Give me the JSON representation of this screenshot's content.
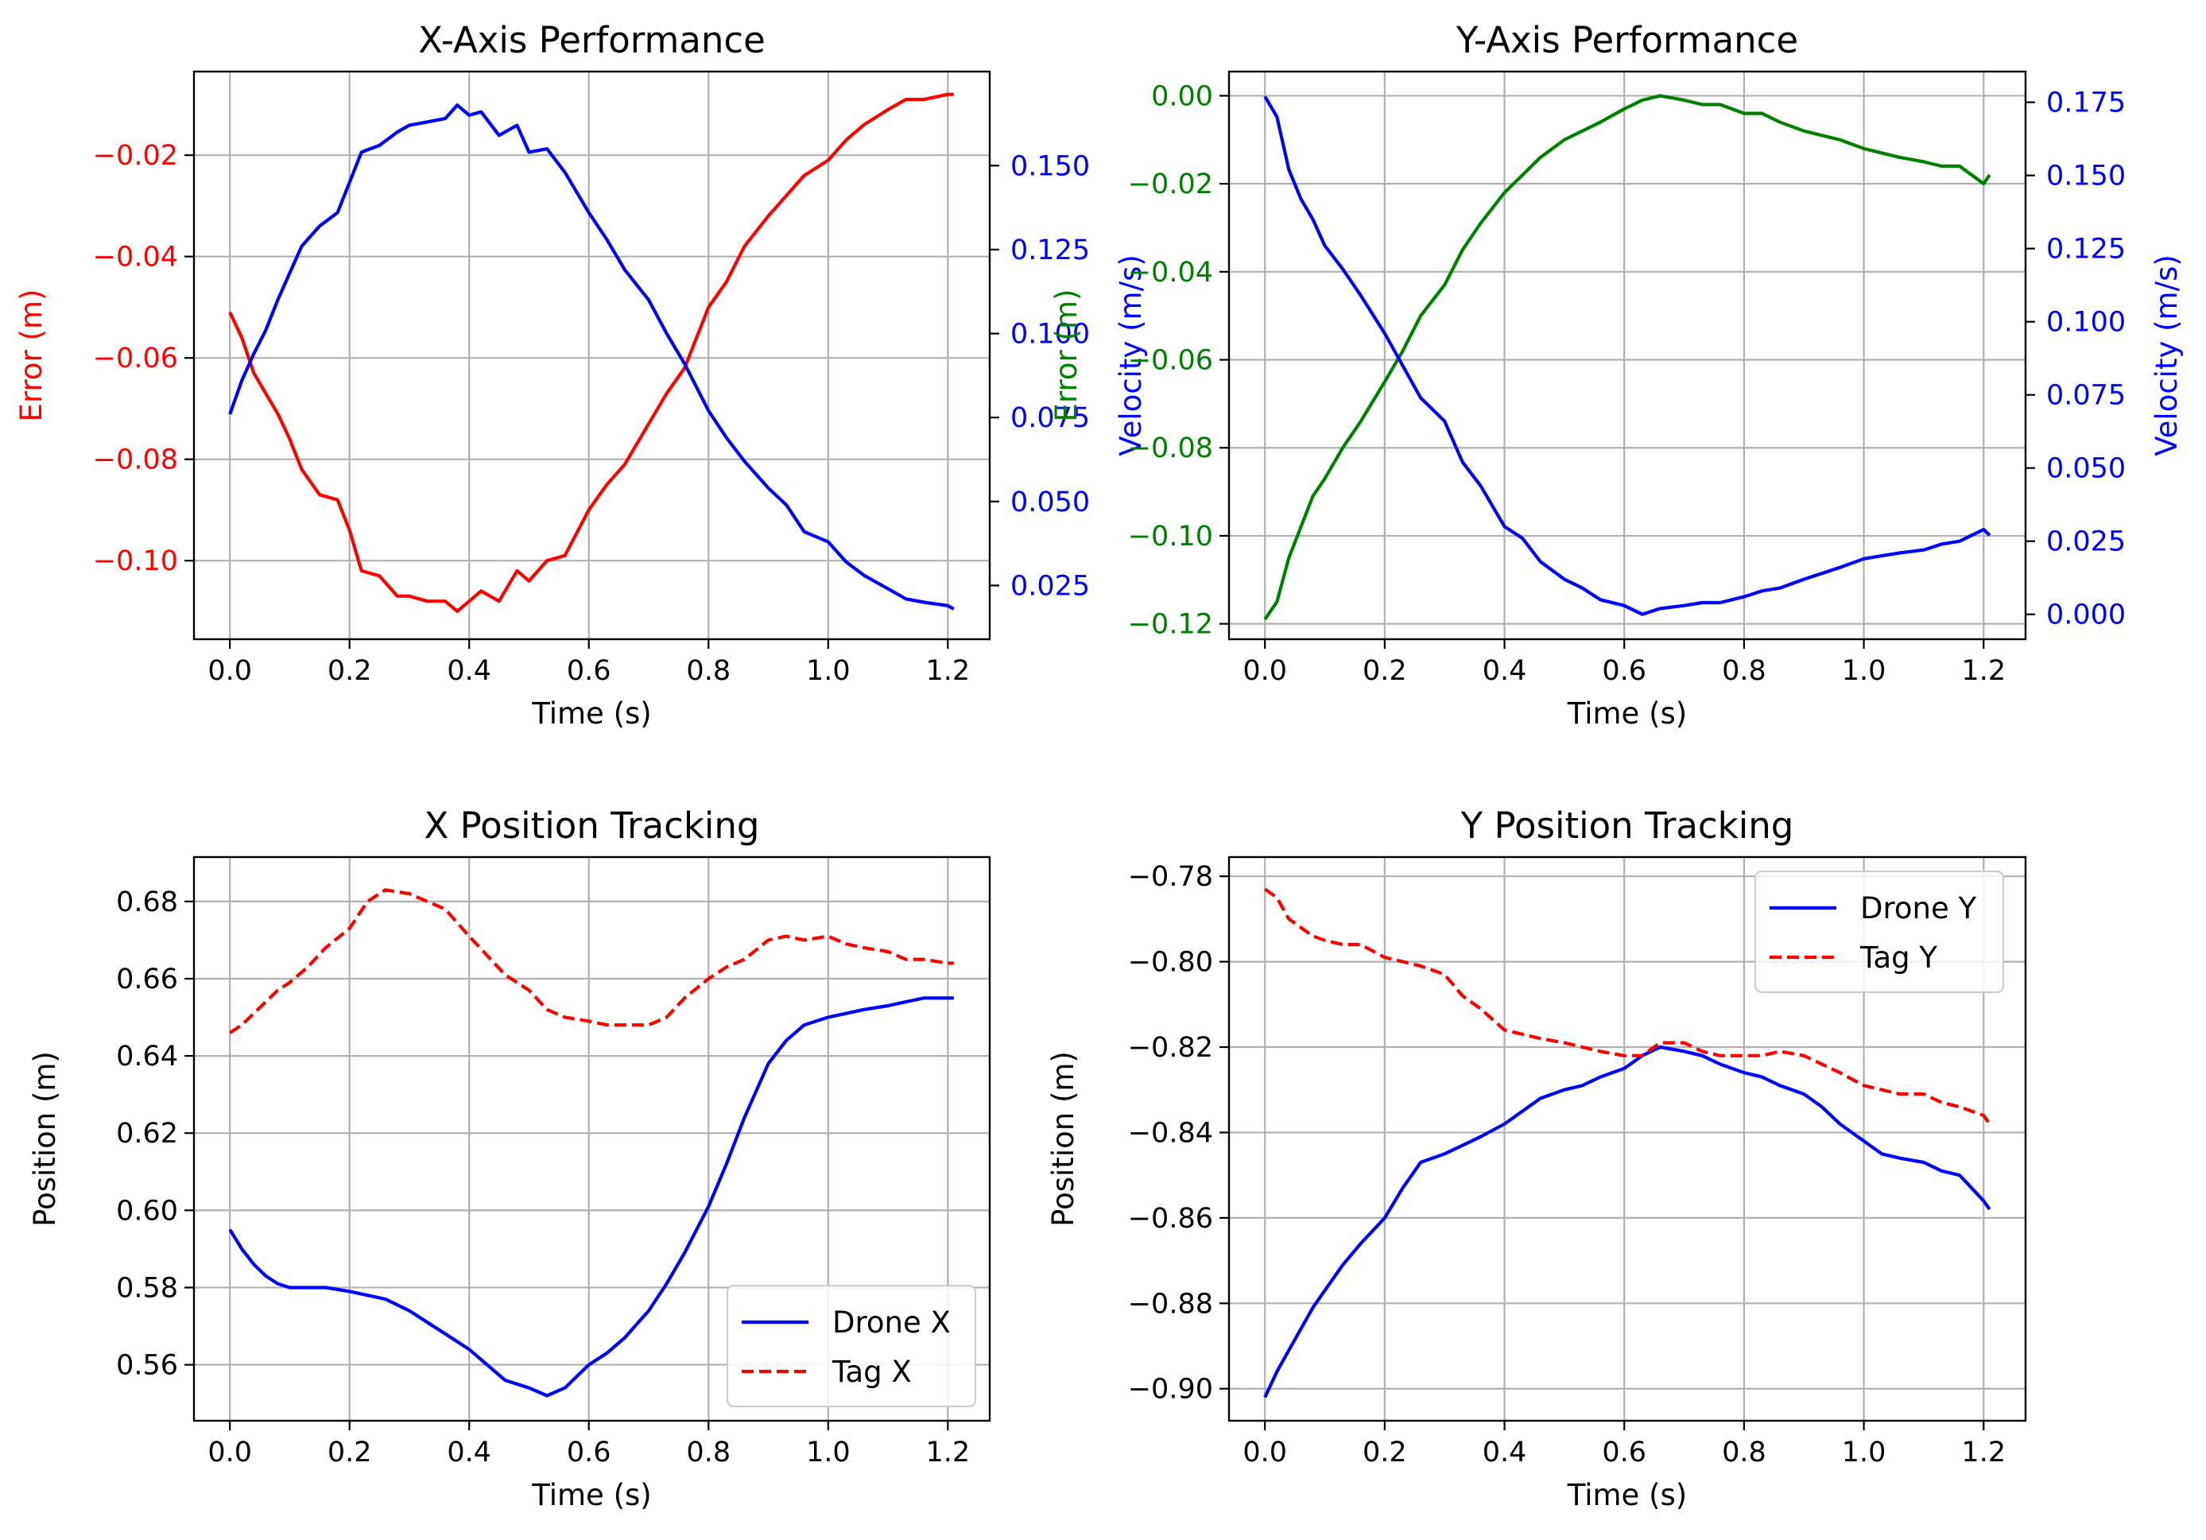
{
  "chart_data": [
    {
      "type": "line",
      "title": "X-Axis Performance",
      "xlabel": "Time (s)",
      "ylabel": "Error (m)",
      "ylabel_color": "#ff0000",
      "y2label": "Velocity (m/s)",
      "y2label_color": "#0000ff",
      "xlim": [
        -0.06,
        1.27
      ],
      "ylim": [
        -0.1155,
        -0.0035
      ],
      "y2lim": [
        0.009,
        0.178
      ],
      "xticks": [
        0.0,
        0.2,
        0.4,
        0.6,
        0.8,
        1.0,
        1.2
      ],
      "xtick_labels": [
        "0.0",
        "0.2",
        "0.4",
        "0.6",
        "0.8",
        "1.0",
        "1.2"
      ],
      "yticks": [
        -0.1,
        -0.08,
        -0.06,
        -0.04,
        -0.02
      ],
      "ytick_labels": [
        "−0.10",
        "−0.08",
        "−0.06",
        "−0.04",
        "−0.02"
      ],
      "ytick_color": "#ff0000",
      "y2ticks": [
        0.025,
        0.05,
        0.075,
        0.1,
        0.125,
        0.15
      ],
      "y2tick_labels": [
        "0.025",
        "0.050",
        "0.075",
        "0.100",
        "0.125",
        "0.150"
      ],
      "y2tick_color": "#0000ff",
      "grid": true,
      "legend": null,
      "series": [
        {
          "axis": "left",
          "color": "#ff0000",
          "style": "solid",
          "x": [
            0.0,
            0.02,
            0.04,
            0.06,
            0.08,
            0.1,
            0.12,
            0.15,
            0.18,
            0.2,
            0.22,
            0.25,
            0.28,
            0.3,
            0.33,
            0.36,
            0.38,
            0.4,
            0.42,
            0.45,
            0.48,
            0.5,
            0.53,
            0.56,
            0.6,
            0.63,
            0.66,
            0.7,
            0.73,
            0.76,
            0.8,
            0.83,
            0.86,
            0.9,
            0.93,
            0.96,
            1.0,
            1.03,
            1.06,
            1.1,
            1.13,
            1.16,
            1.2,
            1.21
          ],
          "y": [
            -0.051,
            -0.056,
            -0.063,
            -0.067,
            -0.071,
            -0.076,
            -0.082,
            -0.087,
            -0.088,
            -0.094,
            -0.102,
            -0.103,
            -0.107,
            -0.107,
            -0.108,
            -0.108,
            -0.11,
            -0.108,
            -0.106,
            -0.108,
            -0.102,
            -0.104,
            -0.1,
            -0.099,
            -0.09,
            -0.085,
            -0.081,
            -0.073,
            -0.067,
            -0.062,
            -0.05,
            -0.045,
            -0.038,
            -0.032,
            -0.028,
            -0.024,
            -0.021,
            -0.017,
            -0.014,
            -0.011,
            -0.009,
            -0.009,
            -0.008,
            -0.008
          ]
        },
        {
          "axis": "right",
          "color": "#0000ff",
          "style": "solid",
          "x": [
            0.0,
            0.02,
            0.04,
            0.06,
            0.08,
            0.1,
            0.12,
            0.15,
            0.18,
            0.2,
            0.22,
            0.25,
            0.28,
            0.3,
            0.33,
            0.36,
            0.38,
            0.4,
            0.42,
            0.45,
            0.48,
            0.5,
            0.53,
            0.56,
            0.6,
            0.63,
            0.66,
            0.7,
            0.73,
            0.76,
            0.8,
            0.83,
            0.86,
            0.9,
            0.93,
            0.96,
            1.0,
            1.03,
            1.06,
            1.1,
            1.13,
            1.16,
            1.2,
            1.21
          ],
          "y": [
            0.076,
            0.086,
            0.094,
            0.101,
            0.11,
            0.118,
            0.126,
            0.132,
            0.136,
            0.145,
            0.154,
            0.156,
            0.16,
            0.162,
            0.163,
            0.164,
            0.168,
            0.165,
            0.166,
            0.159,
            0.162,
            0.154,
            0.155,
            0.148,
            0.136,
            0.128,
            0.119,
            0.11,
            0.1,
            0.091,
            0.077,
            0.069,
            0.062,
            0.054,
            0.049,
            0.041,
            0.038,
            0.032,
            0.028,
            0.024,
            0.021,
            0.02,
            0.019,
            0.018
          ]
        }
      ]
    },
    {
      "type": "line",
      "title": "Y-Axis Performance",
      "xlabel": "Time (s)",
      "ylabel": "Error (m)",
      "ylabel_color": "#008000",
      "y2label": "Velocity (m/s)",
      "y2label_color": "#0000ff",
      "xlim": [
        -0.06,
        1.27
      ],
      "ylim": [
        -0.1235,
        0.0055
      ],
      "y2lim": [
        -0.0085,
        0.1855
      ],
      "xticks": [
        0.0,
        0.2,
        0.4,
        0.6,
        0.8,
        1.0,
        1.2
      ],
      "xtick_labels": [
        "0.0",
        "0.2",
        "0.4",
        "0.6",
        "0.8",
        "1.0",
        "1.2"
      ],
      "yticks": [
        -0.12,
        -0.1,
        -0.08,
        -0.06,
        -0.04,
        -0.02,
        0.0
      ],
      "ytick_labels": [
        "−0.12",
        "−0.10",
        "−0.08",
        "−0.06",
        "−0.04",
        "−0.02",
        "0.00"
      ],
      "ytick_color": "#008000",
      "y2ticks": [
        0.0,
        0.025,
        0.05,
        0.075,
        0.1,
        0.125,
        0.15,
        0.175
      ],
      "y2tick_labels": [
        "0.000",
        "0.025",
        "0.050",
        "0.075",
        "0.100",
        "0.125",
        "0.150",
        "0.175"
      ],
      "y2tick_color": "#0000ff",
      "grid": true,
      "legend": null,
      "series": [
        {
          "axis": "left",
          "color": "#008000",
          "style": "solid",
          "x": [
            0.0,
            0.02,
            0.04,
            0.06,
            0.08,
            0.1,
            0.13,
            0.16,
            0.2,
            0.23,
            0.26,
            0.3,
            0.33,
            0.36,
            0.4,
            0.43,
            0.46,
            0.5,
            0.53,
            0.56,
            0.6,
            0.63,
            0.66,
            0.7,
            0.73,
            0.76,
            0.8,
            0.83,
            0.86,
            0.9,
            0.93,
            0.96,
            1.0,
            1.03,
            1.06,
            1.1,
            1.13,
            1.16,
            1.2,
            1.21
          ],
          "y": [
            -0.119,
            -0.115,
            -0.105,
            -0.098,
            -0.091,
            -0.087,
            -0.08,
            -0.074,
            -0.065,
            -0.058,
            -0.05,
            -0.043,
            -0.035,
            -0.029,
            -0.022,
            -0.018,
            -0.014,
            -0.01,
            -0.008,
            -0.006,
            -0.003,
            -0.001,
            0.0,
            -0.001,
            -0.002,
            -0.002,
            -0.004,
            -0.004,
            -0.006,
            -0.008,
            -0.009,
            -0.01,
            -0.012,
            -0.013,
            -0.014,
            -0.015,
            -0.016,
            -0.016,
            -0.02,
            -0.018
          ]
        },
        {
          "axis": "right",
          "color": "#0000ff",
          "style": "solid",
          "x": [
            0.0,
            0.02,
            0.04,
            0.06,
            0.08,
            0.1,
            0.13,
            0.16,
            0.2,
            0.23,
            0.26,
            0.3,
            0.33,
            0.36,
            0.4,
            0.43,
            0.46,
            0.5,
            0.53,
            0.56,
            0.6,
            0.63,
            0.66,
            0.7,
            0.73,
            0.76,
            0.8,
            0.83,
            0.86,
            0.9,
            0.93,
            0.96,
            1.0,
            1.03,
            1.06,
            1.1,
            1.13,
            1.16,
            1.2,
            1.21
          ],
          "y": [
            0.177,
            0.17,
            0.152,
            0.142,
            0.135,
            0.126,
            0.118,
            0.109,
            0.096,
            0.085,
            0.074,
            0.066,
            0.052,
            0.044,
            0.03,
            0.026,
            0.018,
            0.012,
            0.009,
            0.005,
            0.003,
            0.0,
            0.002,
            0.003,
            0.004,
            0.004,
            0.006,
            0.008,
            0.009,
            0.012,
            0.014,
            0.016,
            0.019,
            0.02,
            0.021,
            0.022,
            0.024,
            0.025,
            0.029,
            0.027
          ]
        }
      ]
    },
    {
      "type": "line",
      "title": "X Position Tracking",
      "xlabel": "Time (s)",
      "ylabel": "Position (m)",
      "xlim": [
        -0.06,
        1.27
      ],
      "ylim": [
        0.5455,
        0.6915
      ],
      "xticks": [
        0.0,
        0.2,
        0.4,
        0.6,
        0.8,
        1.0,
        1.2
      ],
      "xtick_labels": [
        "0.0",
        "0.2",
        "0.4",
        "0.6",
        "0.8",
        "1.0",
        "1.2"
      ],
      "yticks": [
        0.56,
        0.58,
        0.6,
        0.62,
        0.64,
        0.66,
        0.68
      ],
      "ytick_labels": [
        "0.56",
        "0.58",
        "0.60",
        "0.62",
        "0.64",
        "0.66",
        "0.68"
      ],
      "grid": true,
      "legend": "lower right",
      "series": [
        {
          "name": "Drone X",
          "color": "#0000ff",
          "style": "solid",
          "x": [
            0.0,
            0.02,
            0.04,
            0.06,
            0.08,
            0.1,
            0.13,
            0.16,
            0.2,
            0.23,
            0.26,
            0.3,
            0.33,
            0.36,
            0.4,
            0.43,
            0.46,
            0.5,
            0.53,
            0.56,
            0.6,
            0.63,
            0.66,
            0.7,
            0.73,
            0.76,
            0.8,
            0.83,
            0.86,
            0.9,
            0.93,
            0.96,
            1.0,
            1.03,
            1.06,
            1.1,
            1.13,
            1.16,
            1.2,
            1.21
          ],
          "y": [
            0.595,
            0.59,
            0.586,
            0.583,
            0.581,
            0.58,
            0.58,
            0.58,
            0.579,
            0.578,
            0.577,
            0.574,
            0.571,
            0.568,
            0.564,
            0.56,
            0.556,
            0.554,
            0.552,
            0.554,
            0.56,
            0.563,
            0.567,
            0.574,
            0.581,
            0.589,
            0.601,
            0.612,
            0.624,
            0.638,
            0.644,
            0.648,
            0.65,
            0.651,
            0.652,
            0.653,
            0.654,
            0.655,
            0.655,
            0.655
          ]
        },
        {
          "name": "Tag X",
          "color": "#ff0000",
          "style": "dashed",
          "x": [
            0.0,
            0.02,
            0.04,
            0.06,
            0.08,
            0.1,
            0.13,
            0.16,
            0.2,
            0.23,
            0.26,
            0.3,
            0.33,
            0.36,
            0.4,
            0.43,
            0.46,
            0.5,
            0.53,
            0.56,
            0.6,
            0.63,
            0.66,
            0.7,
            0.73,
            0.76,
            0.8,
            0.83,
            0.86,
            0.9,
            0.93,
            0.96,
            1.0,
            1.03,
            1.06,
            1.1,
            1.13,
            1.16,
            1.2,
            1.21
          ],
          "y": [
            0.646,
            0.648,
            0.651,
            0.654,
            0.657,
            0.659,
            0.663,
            0.668,
            0.673,
            0.68,
            0.683,
            0.682,
            0.68,
            0.678,
            0.671,
            0.666,
            0.661,
            0.657,
            0.652,
            0.65,
            0.649,
            0.648,
            0.648,
            0.648,
            0.65,
            0.655,
            0.66,
            0.663,
            0.665,
            0.67,
            0.671,
            0.67,
            0.671,
            0.669,
            0.668,
            0.667,
            0.665,
            0.665,
            0.664,
            0.664
          ]
        }
      ]
    },
    {
      "type": "line",
      "title": "Y Position Tracking",
      "xlabel": "Time (s)",
      "ylabel": "Position (m)",
      "xlim": [
        -0.06,
        1.27
      ],
      "ylim": [
        -0.9075,
        -0.7755
      ],
      "xticks": [
        0.0,
        0.2,
        0.4,
        0.6,
        0.8,
        1.0,
        1.2
      ],
      "xtick_labels": [
        "0.0",
        "0.2",
        "0.4",
        "0.6",
        "0.8",
        "1.0",
        "1.2"
      ],
      "yticks": [
        -0.9,
        -0.88,
        -0.86,
        -0.84,
        -0.82,
        -0.8,
        -0.78
      ],
      "ytick_labels": [
        "−0.90",
        "−0.88",
        "−0.86",
        "−0.84",
        "−0.82",
        "−0.80",
        "−0.78"
      ],
      "grid": true,
      "legend": "upper right",
      "series": [
        {
          "name": "Drone Y",
          "color": "#0000ff",
          "style": "solid",
          "x": [
            0.0,
            0.02,
            0.04,
            0.06,
            0.08,
            0.1,
            0.13,
            0.16,
            0.2,
            0.23,
            0.26,
            0.3,
            0.33,
            0.36,
            0.4,
            0.43,
            0.46,
            0.5,
            0.53,
            0.56,
            0.6,
            0.63,
            0.66,
            0.7,
            0.73,
            0.76,
            0.8,
            0.83,
            0.86,
            0.9,
            0.93,
            0.96,
            1.0,
            1.03,
            1.06,
            1.1,
            1.13,
            1.16,
            1.2,
            1.21
          ],
          "y": [
            -0.902,
            -0.896,
            -0.891,
            -0.886,
            -0.881,
            -0.877,
            -0.871,
            -0.866,
            -0.86,
            -0.853,
            -0.847,
            -0.845,
            -0.843,
            -0.841,
            -0.838,
            -0.835,
            -0.832,
            -0.83,
            -0.829,
            -0.827,
            -0.825,
            -0.822,
            -0.82,
            -0.821,
            -0.822,
            -0.824,
            -0.826,
            -0.827,
            -0.829,
            -0.831,
            -0.834,
            -0.838,
            -0.842,
            -0.845,
            -0.846,
            -0.847,
            -0.849,
            -0.85,
            -0.856,
            -0.858
          ]
        },
        {
          "name": "Tag Y",
          "color": "#ff0000",
          "style": "dashed",
          "x": [
            0.0,
            0.02,
            0.04,
            0.06,
            0.08,
            0.1,
            0.13,
            0.16,
            0.2,
            0.23,
            0.26,
            0.3,
            0.33,
            0.36,
            0.4,
            0.43,
            0.46,
            0.5,
            0.53,
            0.56,
            0.6,
            0.63,
            0.66,
            0.7,
            0.73,
            0.76,
            0.8,
            0.83,
            0.86,
            0.9,
            0.93,
            0.96,
            1.0,
            1.03,
            1.06,
            1.1,
            1.13,
            1.16,
            1.2,
            1.21
          ],
          "y": [
            -0.783,
            -0.785,
            -0.79,
            -0.792,
            -0.794,
            -0.795,
            -0.796,
            -0.796,
            -0.799,
            -0.8,
            -0.801,
            -0.803,
            -0.808,
            -0.811,
            -0.816,
            -0.817,
            -0.818,
            -0.819,
            -0.82,
            -0.821,
            -0.822,
            -0.822,
            -0.819,
            -0.819,
            -0.821,
            -0.822,
            -0.822,
            -0.822,
            -0.821,
            -0.822,
            -0.824,
            -0.826,
            -0.829,
            -0.83,
            -0.831,
            -0.831,
            -0.833,
            -0.834,
            -0.836,
            -0.838
          ]
        }
      ]
    }
  ]
}
